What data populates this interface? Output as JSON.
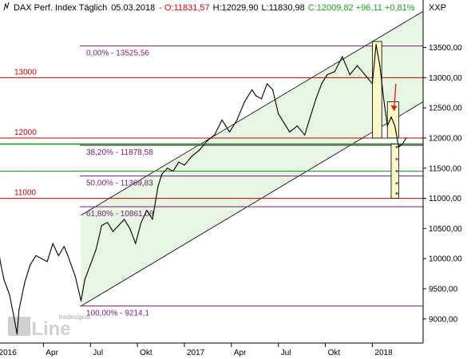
{
  "header": {
    "title": "DAX Perf. Index Täglich",
    "date": "05.03.2018",
    "open": "- O:11831,57",
    "high": "H:12029,90",
    "low": "L:11830,98",
    "close": "C:12009,82 +96,11 +0,81%",
    "currency": "XXP"
  },
  "watermark": {
    "logo": "onLine",
    "brand": "tradesignal"
  },
  "colors": {
    "price": "#000000",
    "channel_fill": "#e6f6e2",
    "fib_line": "#7a1a7a",
    "level_line": "#c00000",
    "support_line": "#1a9a1a",
    "box_fill": "#fbf7c6",
    "arrow": "#d42020"
  },
  "chart_data": {
    "type": "line",
    "title": "DAX Perf. Index Täglich",
    "xlabel": "",
    "ylabel": "",
    "ylim": [
      8600,
      14050
    ],
    "y_ticks": [
      "9000,00",
      "9500,00",
      "10000,00",
      "10500,00",
      "11000,00",
      "11500,00",
      "12000,00",
      "12500,00",
      "13000,00",
      "13500,00"
    ],
    "y_tick_values": [
      9000,
      9500,
      10000,
      10500,
      11000,
      11500,
      12000,
      12500,
      13000,
      13500
    ],
    "x_ticks": [
      "2016",
      "Apr",
      "Jul",
      "Okt",
      "2017",
      "Apr",
      "Jul",
      "Okt",
      "2018"
    ],
    "x_tick_times": [
      2016.0,
      2016.25,
      2016.5,
      2016.75,
      2017.0,
      2017.25,
      2017.5,
      2017.75,
      2018.0
    ],
    "xlim": [
      2015.9,
      2018.27
    ],
    "grid": false,
    "fib_levels": [
      {
        "label": "0,00% - 13525,56",
        "value": 13525.56
      },
      {
        "label": "38,20% - 11878,58",
        "value": 11878.58
      },
      {
        "label": "50,00% - 11369,83",
        "value": 11369.83
      },
      {
        "label": "61,80% - 10861,08",
        "value": 10861.08
      },
      {
        "label": "100,00% - 9214,1",
        "value": 9214.1
      }
    ],
    "levels": [
      {
        "label": "13000",
        "value": 13000
      },
      {
        "label": "12000",
        "value": 12000
      },
      {
        "label": "11000",
        "value": 11000
      }
    ],
    "support_lines": [
      11450,
      11900
    ],
    "channel": {
      "lower": [
        [
          2016.45,
          9214
        ],
        [
          2018.27,
          12600
        ]
      ],
      "upper": [
        [
          2016.45,
          10720
        ],
        [
          2018.27,
          14100
        ]
      ]
    },
    "boxes": [
      {
        "t0": 2018.0,
        "t1": 2018.05,
        "y0": 12000,
        "y1": 13600
      },
      {
        "t0": 2018.08,
        "t1": 2018.14,
        "y0": 12000,
        "y1": 12600
      },
      {
        "t0": 2018.1,
        "t1": 2018.14,
        "y0": 11000,
        "y1": 11900
      }
    ],
    "arrow": {
      "from": [
        2018.125,
        12900
      ],
      "to": [
        2018.115,
        12450
      ]
    },
    "dots": [
      [
        2018.13,
        11850
      ],
      [
        2018.13,
        11650
      ],
      [
        2018.13,
        11450
      ],
      [
        2018.13,
        11250
      ],
      [
        2018.13,
        11080
      ]
    ],
    "series": [
      {
        "name": "DAX",
        "x": [
          2015.9,
          2015.92,
          2015.95,
          2015.98,
          2016.0,
          2016.02,
          2016.04,
          2016.07,
          2016.09,
          2016.11,
          2016.12,
          2016.15,
          2016.18,
          2016.21,
          2016.24,
          2016.27,
          2016.3,
          2016.33,
          2016.36,
          2016.38,
          2016.42,
          2016.45,
          2016.47,
          2016.5,
          2016.53,
          2016.56,
          2016.59,
          2016.62,
          2016.65,
          2016.68,
          2016.71,
          2016.74,
          2016.77,
          2016.8,
          2016.83,
          2016.86,
          2016.88,
          2016.91,
          2016.94,
          2016.97,
          2017.0,
          2017.04,
          2017.08,
          2017.12,
          2017.16,
          2017.2,
          2017.24,
          2017.28,
          2017.32,
          2017.36,
          2017.38,
          2017.41,
          2017.44,
          2017.47,
          2017.5,
          2017.53,
          2017.56,
          2017.6,
          2017.64,
          2017.67,
          2017.7,
          2017.73,
          2017.76,
          2017.8,
          2017.84,
          2017.88,
          2017.92,
          2017.96,
          2018.0,
          2018.02,
          2018.04,
          2018.06,
          2018.08,
          2018.1,
          2018.12,
          2018.14,
          2018.16,
          2018.18
        ],
        "values": [
          11300,
          10900,
          10800,
          10700,
          10450,
          9950,
          9650,
          9400,
          9080,
          8750,
          9150,
          9600,
          9900,
          10050,
          10000,
          9950,
          10250,
          10050,
          10200,
          10050,
          9700,
          9300,
          9650,
          9900,
          10150,
          10550,
          10600,
          10450,
          10550,
          10650,
          10500,
          10250,
          10600,
          10800,
          10650,
          11200,
          11400,
          11500,
          11450,
          11600,
          11550,
          11700,
          11800,
          11950,
          12050,
          12300,
          12100,
          12300,
          12600,
          12800,
          12700,
          12650,
          12900,
          12800,
          12400,
          12250,
          12100,
          12200,
          12050,
          12350,
          12650,
          12900,
          13050,
          13100,
          13350,
          13050,
          13200,
          13050,
          12900,
          13550,
          13200,
          12650,
          12200,
          12350,
          12200,
          11850,
          11900,
          12000
        ]
      }
    ]
  }
}
